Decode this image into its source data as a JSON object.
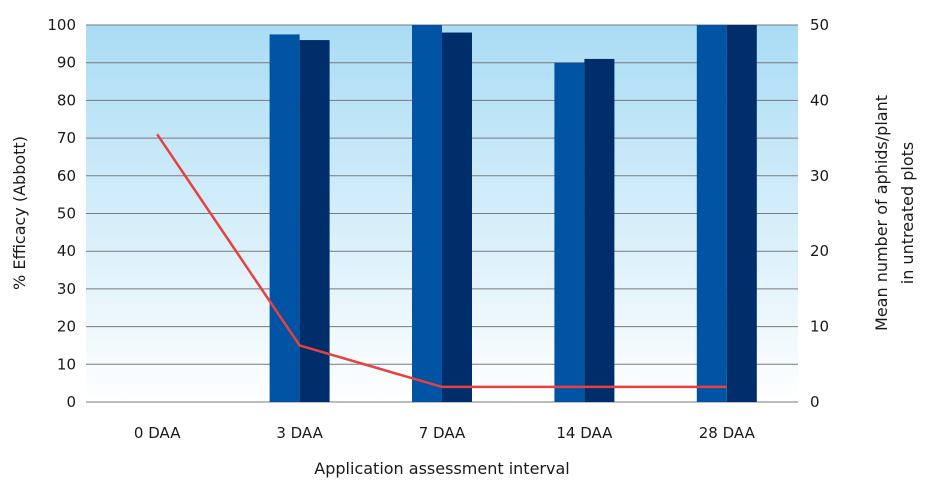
{
  "chart_data": {
    "type": "bar",
    "categories": [
      "0 DAA",
      "3 DAA",
      "7 DAA",
      "14 DAA",
      "28 DAA"
    ],
    "series": [
      {
        "type": "bar",
        "axis": "left",
        "color": "#0054a3",
        "values": [
          0,
          97.5,
          100,
          90,
          100
        ]
      },
      {
        "type": "bar",
        "axis": "left",
        "color": "#002e6b",
        "values": [
          0,
          96,
          98,
          91,
          100
        ]
      },
      {
        "type": "line",
        "axis": "right",
        "color": "#e8403f",
        "values": [
          35.5,
          7.5,
          2,
          2,
          2
        ]
      }
    ],
    "xlabel": "Application assessment interval",
    "ylabel": "% Efficacy (Abbott)",
    "y2label": [
      "Mean number of aphids/plant",
      "in untreated plots"
    ],
    "ylim": [
      0,
      100
    ],
    "y2lim": [
      0,
      50
    ],
    "yticks": [
      0,
      10,
      20,
      30,
      40,
      50,
      60,
      70,
      80,
      90,
      100
    ],
    "y2ticks": [
      0,
      10,
      20,
      30,
      40,
      50
    ],
    "grid": true,
    "background_gradient": [
      "#a9dcf5",
      "#ffffff"
    ]
  }
}
